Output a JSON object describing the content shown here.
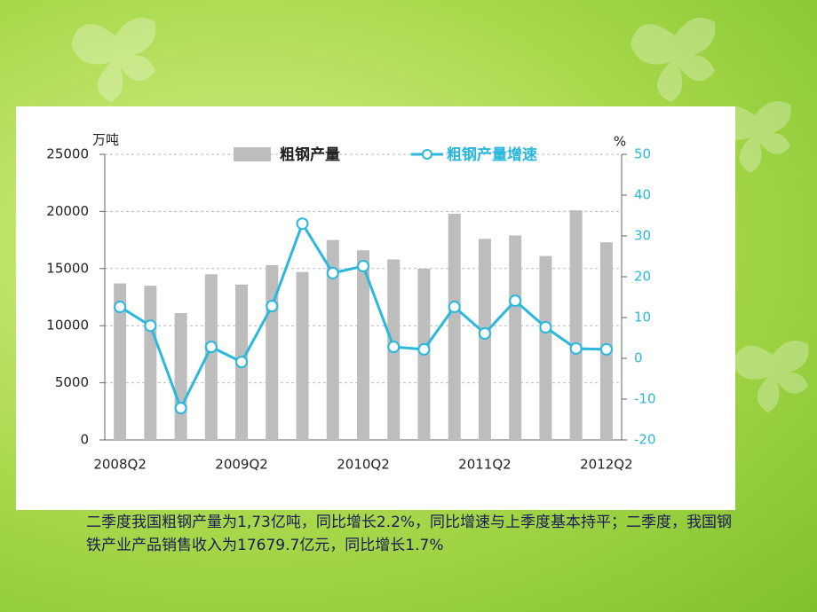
{
  "chart_data": {
    "type": "bar-line",
    "categories": [
      "2008Q2",
      null,
      null,
      null,
      "2009Q2",
      null,
      null,
      null,
      "2010Q2",
      null,
      null,
      null,
      "2011Q2",
      null,
      null,
      null,
      "2012Q2"
    ],
    "y_unit": "万吨",
    "y2_unit": "%",
    "series": [
      {
        "name": "粗钢产量",
        "type": "bar",
        "color": "#bdbdbd",
        "values": [
          13700,
          13500,
          11100,
          14500,
          13600,
          15300,
          14700,
          17500,
          16600,
          15800,
          15000,
          19800,
          17600,
          17900,
          16100,
          20100,
          17300
        ]
      },
      {
        "name": "粗钢产量增速",
        "type": "line",
        "axis": "y2",
        "color": "#2bb8dc",
        "values": [
          12.6,
          8,
          -12.2,
          2.8,
          -0.9,
          12.8,
          33,
          20.9,
          22.6,
          2.8,
          2.2,
          12.6,
          6.1,
          14.1,
          7.6,
          2.4,
          2.2
        ]
      }
    ],
    "ylim": [
      0,
      25000
    ],
    "yticks": [
      0,
      5000,
      10000,
      15000,
      20000,
      25000
    ],
    "y2lim": [
      -20,
      50
    ],
    "y2ticks": [
      -20,
      -10,
      0,
      10,
      20,
      30,
      40,
      50
    ],
    "grid": true,
    "legend": "top"
  },
  "caption": "二季度我国粗钢产量为1,73亿吨，同比增长2.2%，同比增速与上季度基本持平；二季度，我国钢铁产业产品销售收入为17679.7亿元，同比增长1.7%"
}
